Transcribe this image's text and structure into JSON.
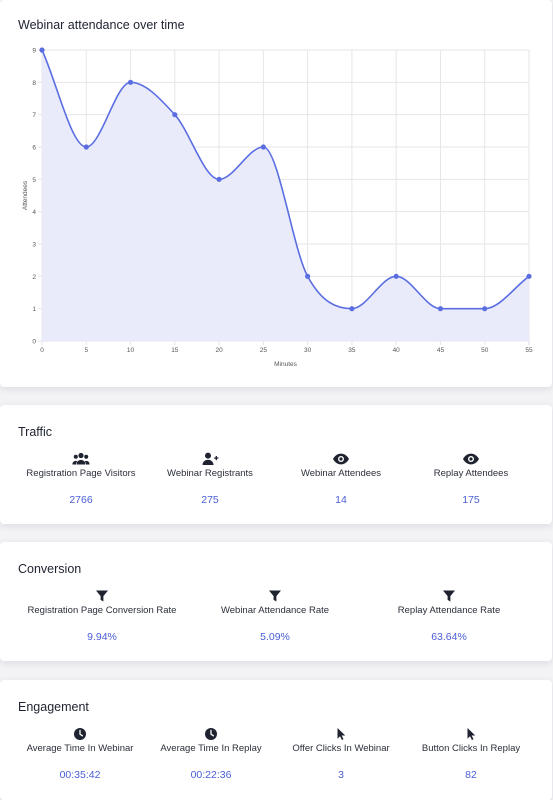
{
  "chart_card": {
    "title": "Webinar attendance over time"
  },
  "chart_data": {
    "type": "area",
    "title": "Webinar attendance over time",
    "xlabel": "Minutes",
    "ylabel": "Attendees",
    "x": [
      0,
      5,
      10,
      15,
      20,
      25,
      30,
      35,
      40,
      45,
      50,
      55
    ],
    "values": [
      9,
      6,
      8,
      7,
      5,
      6,
      2,
      1,
      2,
      1,
      1,
      2
    ],
    "xlim": [
      0,
      55
    ],
    "ylim": [
      0,
      9
    ],
    "x_ticks": [
      "0",
      "5",
      "10",
      "15",
      "20",
      "25",
      "30",
      "35",
      "40",
      "45",
      "50",
      "55"
    ],
    "y_ticks": [
      "0",
      "1",
      "2",
      "3",
      "4",
      "5",
      "6",
      "7",
      "8",
      "9"
    ],
    "grid": true,
    "line_color": "#5b6ee1",
    "fill_color": "#e9ebfb"
  },
  "traffic": {
    "title": "Traffic",
    "metrics": [
      {
        "label": "Registration Page Visitors",
        "value": "2766",
        "icon": "users-icon"
      },
      {
        "label": "Webinar Registrants",
        "value": "275",
        "icon": "user-plus-icon"
      },
      {
        "label": "Webinar Attendees",
        "value": "14",
        "icon": "eye-icon"
      },
      {
        "label": "Replay Attendees",
        "value": "175",
        "icon": "eye-icon"
      }
    ]
  },
  "conversion": {
    "title": "Conversion",
    "metrics": [
      {
        "label": "Registration Page Conversion Rate",
        "value": "9.94%",
        "icon": "filter-icon"
      },
      {
        "label": "Webinar Attendance Rate",
        "value": "5.09%",
        "icon": "filter-icon"
      },
      {
        "label": "Replay Attendance Rate",
        "value": "63.64%",
        "icon": "filter-icon"
      }
    ]
  },
  "engagement": {
    "title": "Engagement",
    "metrics": [
      {
        "label": "Average Time In Webinar",
        "value": "00:35:42",
        "icon": "clock-icon"
      },
      {
        "label": "Average Time In Replay",
        "value": "00:22:36",
        "icon": "clock-icon"
      },
      {
        "label": "Offer Clicks In Webinar",
        "value": "3",
        "icon": "cursor-icon"
      },
      {
        "label": "Button Clicks In Replay",
        "value": "82",
        "icon": "cursor-icon"
      }
    ]
  },
  "colors": {
    "accent": "#4a5ed6",
    "icon": "#1f2330"
  }
}
